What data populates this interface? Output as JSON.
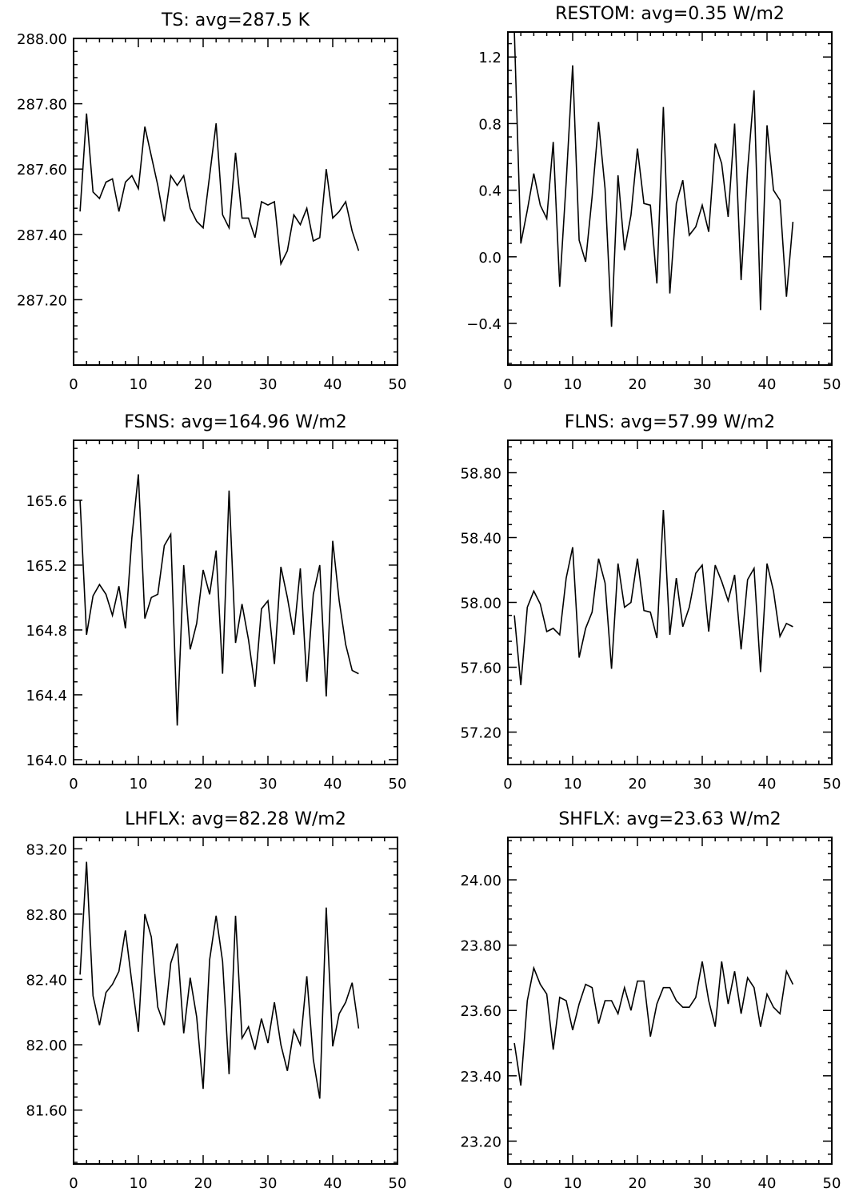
{
  "chart_data": [
    {
      "type": "line",
      "title": "TS: avg=287.5 K",
      "xlabel": "",
      "ylabel": "",
      "xlim": [
        0,
        50
      ],
      "ylim": [
        287.0,
        288.0
      ],
      "xticks": [
        0,
        10,
        20,
        30,
        40,
        50
      ],
      "xtick_labels": [
        "0",
        "10",
        "20",
        "30",
        "40",
        "50"
      ],
      "yticks": [
        287.2,
        287.4,
        287.6,
        287.8,
        288.0
      ],
      "ytick_labels": [
        "287.20",
        "287.40",
        "287.60",
        "287.80",
        "288.00"
      ],
      "x": [
        1,
        2,
        3,
        4,
        5,
        6,
        7,
        8,
        9,
        10,
        11,
        12,
        13,
        14,
        15,
        16,
        17,
        18,
        19,
        20,
        21,
        22,
        23,
        24,
        25,
        26,
        27,
        28,
        29,
        30,
        31,
        32,
        33,
        34,
        35,
        36,
        37,
        38,
        39,
        40,
        41,
        42,
        43,
        44
      ],
      "series": [
        {
          "values": [
            287.47,
            287.77,
            287.53,
            287.51,
            287.56,
            287.57,
            287.47,
            287.56,
            287.58,
            287.54,
            287.73,
            287.64,
            287.55,
            287.44,
            287.58,
            287.55,
            287.58,
            287.48,
            287.44,
            287.42,
            287.58,
            287.74,
            287.46,
            287.42,
            287.65,
            287.45,
            287.45,
            287.39,
            287.5,
            287.49,
            287.5,
            287.31,
            287.35,
            287.46,
            287.43,
            287.48,
            287.38,
            287.39,
            287.6,
            287.45,
            287.47,
            287.5,
            287.41,
            287.35
          ]
        }
      ]
    },
    {
      "type": "line",
      "title": "RESTOM: avg=0.35 W/m2",
      "xlabel": "",
      "ylabel": "",
      "xlim": [
        0,
        50
      ],
      "ylim": [
        -0.65,
        1.35
      ],
      "xticks": [
        0,
        10,
        20,
        30,
        40,
        50
      ],
      "xtick_labels": [
        "0",
        "10",
        "20",
        "30",
        "40",
        "50"
      ],
      "yticks": [
        -0.4,
        0.0,
        0.4,
        0.8,
        1.2
      ],
      "ytick_labels": [
        "−0.4",
        "0.0",
        "0.4",
        "0.8",
        "1.2"
      ],
      "x": [
        1,
        2,
        3,
        4,
        5,
        6,
        7,
        8,
        9,
        10,
        11,
        12,
        13,
        14,
        15,
        16,
        17,
        18,
        19,
        20,
        21,
        22,
        23,
        24,
        25,
        26,
        27,
        28,
        29,
        30,
        31,
        32,
        33,
        34,
        35,
        36,
        37,
        38,
        39,
        40,
        41,
        42,
        43,
        44
      ],
      "series": [
        {
          "values": [
            1.35,
            0.08,
            0.28,
            0.5,
            0.31,
            0.23,
            0.69,
            -0.18,
            0.45,
            1.15,
            0.1,
            -0.03,
            0.36,
            0.81,
            0.41,
            -0.42,
            0.49,
            0.04,
            0.25,
            0.65,
            0.32,
            0.31,
            -0.16,
            0.9,
            -0.22,
            0.32,
            0.46,
            0.13,
            0.18,
            0.31,
            0.15,
            0.68,
            0.56,
            0.24,
            0.8,
            -0.14,
            0.52,
            1.0,
            -0.32,
            0.79,
            0.4,
            0.34,
            -0.24,
            0.21
          ]
        }
      ]
    },
    {
      "type": "line",
      "title": "FSNS: avg=164.96 W/m2",
      "xlabel": "",
      "ylabel": "",
      "xlim": [
        0,
        50
      ],
      "ylim": [
        163.97,
        165.97
      ],
      "xticks": [
        0,
        10,
        20,
        30,
        40,
        50
      ],
      "xtick_labels": [
        "0",
        "10",
        "20",
        "30",
        "40",
        "50"
      ],
      "yticks": [
        164.0,
        164.4,
        164.8,
        165.2,
        165.6
      ],
      "ytick_labels": [
        "164.0",
        "164.4",
        "164.8",
        "165.2",
        "165.6"
      ],
      "x": [
        1,
        2,
        3,
        4,
        5,
        6,
        7,
        8,
        9,
        10,
        11,
        12,
        13,
        14,
        15,
        16,
        17,
        18,
        19,
        20,
        21,
        22,
        23,
        24,
        25,
        26,
        27,
        28,
        29,
        30,
        31,
        32,
        33,
        34,
        35,
        36,
        37,
        38,
        39,
        40,
        41,
        42,
        43,
        44
      ],
      "series": [
        {
          "values": [
            165.6,
            164.77,
            165.01,
            165.08,
            165.02,
            164.89,
            165.07,
            164.81,
            165.37,
            165.76,
            164.87,
            165.0,
            165.02,
            165.32,
            165.39,
            164.21,
            165.2,
            164.68,
            164.84,
            165.17,
            165.02,
            165.29,
            164.53,
            165.66,
            164.72,
            164.96,
            164.74,
            164.45,
            164.93,
            164.98,
            164.59,
            165.19,
            165.0,
            164.77,
            165.18,
            164.48,
            165.02,
            165.2,
            164.39,
            165.35,
            164.98,
            164.71,
            164.55,
            164.53
          ]
        }
      ]
    },
    {
      "type": "line",
      "title": "FLNS: avg=57.99 W/m2",
      "xlabel": "",
      "ylabel": "",
      "xlim": [
        0,
        50
      ],
      "ylim": [
        57.0,
        59.0
      ],
      "xticks": [
        0,
        10,
        20,
        30,
        40,
        50
      ],
      "xtick_labels": [
        "0",
        "10",
        "20",
        "30",
        "40",
        "50"
      ],
      "yticks": [
        57.2,
        57.6,
        58.0,
        58.4,
        58.8
      ],
      "ytick_labels": [
        "57.20",
        "57.60",
        "58.00",
        "58.40",
        "58.80"
      ],
      "x": [
        1,
        2,
        3,
        4,
        5,
        6,
        7,
        8,
        9,
        10,
        11,
        12,
        13,
        14,
        15,
        16,
        17,
        18,
        19,
        20,
        21,
        22,
        23,
        24,
        25,
        26,
        27,
        28,
        29,
        30,
        31,
        32,
        33,
        34,
        35,
        36,
        37,
        38,
        39,
        40,
        41,
        42,
        43,
        44
      ],
      "series": [
        {
          "values": [
            57.92,
            57.49,
            57.97,
            58.07,
            57.99,
            57.82,
            57.84,
            57.8,
            58.15,
            58.34,
            57.66,
            57.84,
            57.94,
            58.27,
            58.12,
            57.59,
            58.24,
            57.97,
            58.0,
            58.27,
            57.95,
            57.94,
            57.78,
            58.57,
            57.8,
            58.15,
            57.85,
            57.97,
            58.18,
            58.23,
            57.82,
            58.23,
            58.13,
            58.01,
            58.17,
            57.71,
            58.14,
            58.21,
            57.57,
            58.24,
            58.07,
            57.79,
            57.87,
            57.85
          ]
        }
      ]
    },
    {
      "type": "line",
      "title": "LHFLX: avg=82.28 W/m2",
      "xlabel": "",
      "ylabel": "",
      "xlim": [
        0,
        50
      ],
      "ylim": [
        81.27,
        83.27
      ],
      "xticks": [
        0,
        10,
        20,
        30,
        40,
        50
      ],
      "xtick_labels": [
        "0",
        "10",
        "20",
        "30",
        "40",
        "50"
      ],
      "yticks": [
        81.6,
        82.0,
        82.4,
        82.8,
        83.2
      ],
      "ytick_labels": [
        "81.60",
        "82.00",
        "82.40",
        "82.80",
        "83.20"
      ],
      "x": [
        1,
        2,
        3,
        4,
        5,
        6,
        7,
        8,
        9,
        10,
        11,
        12,
        13,
        14,
        15,
        16,
        17,
        18,
        19,
        20,
        21,
        22,
        23,
        24,
        25,
        26,
        27,
        28,
        29,
        30,
        31,
        32,
        33,
        34,
        35,
        36,
        37,
        38,
        39,
        40,
        41,
        42,
        43,
        44
      ],
      "series": [
        {
          "values": [
            82.43,
            83.12,
            82.3,
            82.12,
            82.32,
            82.37,
            82.45,
            82.7,
            82.38,
            82.08,
            82.8,
            82.66,
            82.23,
            82.12,
            82.5,
            82.62,
            82.07,
            82.41,
            82.17,
            81.73,
            82.52,
            82.79,
            82.51,
            81.82,
            82.79,
            82.04,
            82.11,
            81.97,
            82.16,
            82.01,
            82.26,
            82.0,
            81.84,
            82.09,
            82.0,
            82.42,
            81.91,
            81.67,
            82.84,
            81.99,
            82.19,
            82.26,
            82.38,
            82.1
          ]
        }
      ]
    },
    {
      "type": "line",
      "title": "SHFLX: avg=23.63 W/m2",
      "xlabel": "",
      "ylabel": "",
      "xlim": [
        0,
        50
      ],
      "ylim": [
        23.13,
        24.13
      ],
      "xticks": [
        0,
        10,
        20,
        30,
        40,
        50
      ],
      "xtick_labels": [
        "0",
        "10",
        "20",
        "30",
        "40",
        "50"
      ],
      "yticks": [
        23.2,
        23.4,
        23.6,
        23.8,
        24.0
      ],
      "ytick_labels": [
        "23.20",
        "23.40",
        "23.60",
        "23.80",
        "24.00"
      ],
      "x": [
        1,
        2,
        3,
        4,
        5,
        6,
        7,
        8,
        9,
        10,
        11,
        12,
        13,
        14,
        15,
        16,
        17,
        18,
        19,
        20,
        21,
        22,
        23,
        24,
        25,
        26,
        27,
        28,
        29,
        30,
        31,
        32,
        33,
        34,
        35,
        36,
        37,
        38,
        39,
        40,
        41,
        42,
        43,
        44
      ],
      "series": [
        {
          "values": [
            23.5,
            23.37,
            23.63,
            23.73,
            23.68,
            23.65,
            23.48,
            23.64,
            23.63,
            23.54,
            23.62,
            23.68,
            23.67,
            23.56,
            23.63,
            23.63,
            23.59,
            23.67,
            23.6,
            23.69,
            23.69,
            23.52,
            23.62,
            23.67,
            23.67,
            23.63,
            23.61,
            23.61,
            23.64,
            23.75,
            23.63,
            23.55,
            23.75,
            23.62,
            23.72,
            23.59,
            23.7,
            23.67,
            23.55,
            23.65,
            23.61,
            23.59,
            23.72,
            23.68
          ]
        }
      ]
    }
  ]
}
